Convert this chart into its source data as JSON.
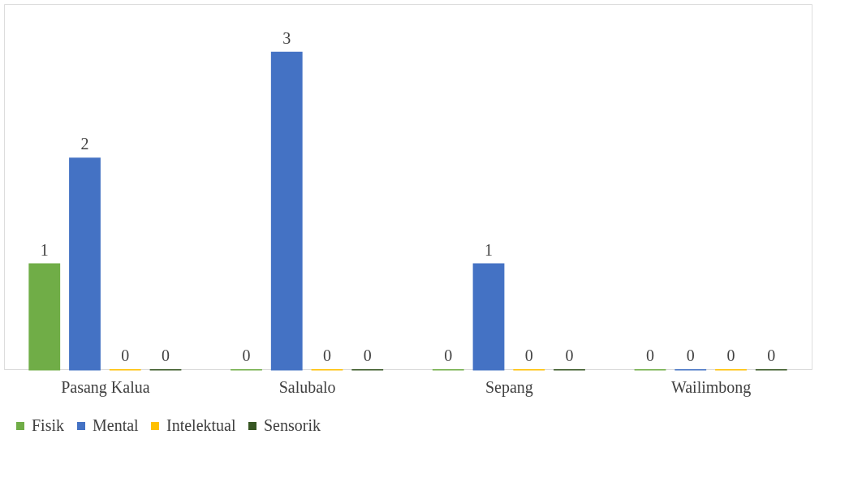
{
  "chart_data": {
    "type": "bar",
    "categories": [
      "Pasang Kalua",
      "Salubalo",
      "Sepang",
      "Wailimbong"
    ],
    "series": [
      {
        "name": "Fisik",
        "color": "#70ad47",
        "values": [
          1,
          0,
          0,
          0
        ]
      },
      {
        "name": "Mental",
        "color": "#4472c4",
        "values": [
          2,
          3,
          1,
          0
        ]
      },
      {
        "name": "Intelektual",
        "color": "#ffc000",
        "values": [
          0,
          0,
          0,
          0
        ]
      },
      {
        "name": "Sensorik",
        "color": "#375623",
        "values": [
          0,
          0,
          0,
          0
        ]
      }
    ],
    "data_labels": true,
    "legend": "bottom",
    "grid": false
  }
}
